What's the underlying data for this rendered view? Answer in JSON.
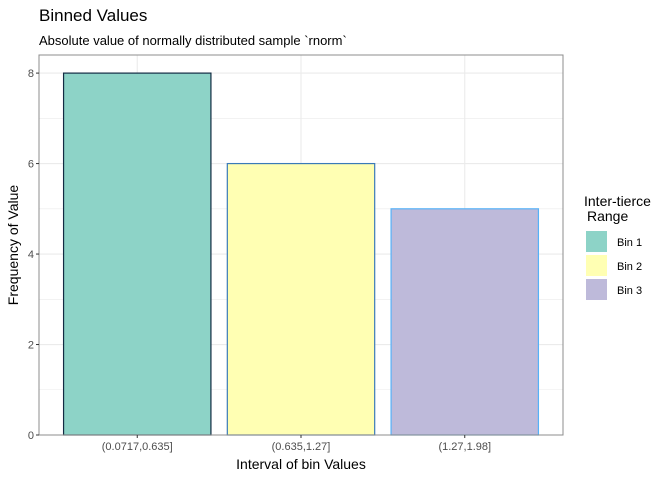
{
  "chart_data": {
    "type": "bar",
    "title": "Binned Values",
    "subtitle": "Absolute value of normally distributed sample `rnorm`",
    "xlabel": "Interval of bin Values",
    "ylabel": "Frequency of Value",
    "categories": [
      "(0.0717,0.635]",
      "(0.635,1.27]",
      "(1.27,1.98]"
    ],
    "values": [
      8,
      6,
      5
    ],
    "ylim": [
      0,
      8.4
    ],
    "yticks": [
      0,
      2,
      4,
      6,
      8
    ],
    "grid": true,
    "legend": {
      "title_line1": "Inter-tierce",
      "title_line2": "Range",
      "placement": "right",
      "entries": [
        "Bin 1",
        "Bin 2",
        "Bin 3"
      ]
    },
    "colors": {
      "fills": [
        "#8dd3c7",
        "#ffffb3",
        "#bebada"
      ],
      "outlines": [
        "#132b43",
        "#3a7ab8",
        "#56b1f7"
      ],
      "grid": "#ebebeb",
      "panel_border": "#8c8c8c"
    }
  }
}
